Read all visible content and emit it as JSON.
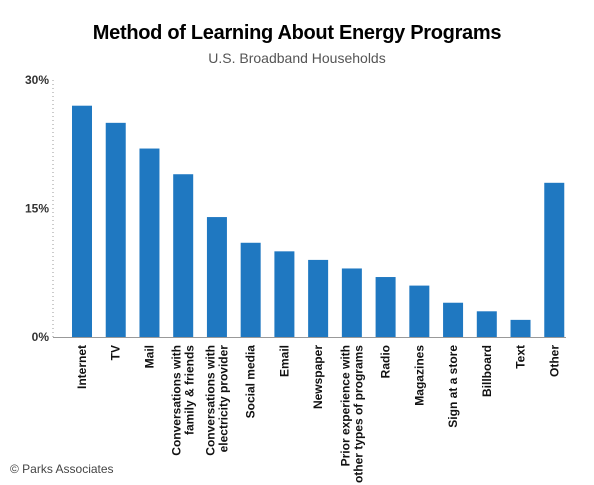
{
  "chart_data": {
    "type": "bar",
    "title": "Method of Learning About Energy Programs",
    "subtitle": "U.S. Broadband Households",
    "xlabel": "",
    "ylabel": "",
    "ylim": [
      0,
      30
    ],
    "yticks": [
      "0%",
      "15%",
      "30%"
    ],
    "ytick_values": [
      0,
      15,
      30
    ],
    "grid": false,
    "categories": [
      [
        "Internet"
      ],
      [
        "TV"
      ],
      [
        "Mail"
      ],
      [
        "Conversations with",
        "family & friends"
      ],
      [
        "Conversations with",
        "electricity provider"
      ],
      [
        "Social media"
      ],
      [
        "Email"
      ],
      [
        "Newspaper"
      ],
      [
        "Prior experience with",
        "other types of programs"
      ],
      [
        "Radio"
      ],
      [
        "Magazines"
      ],
      [
        "Sign at a store"
      ],
      [
        "Billboard"
      ],
      [
        "Text"
      ],
      [
        "Other"
      ]
    ],
    "values": [
      27,
      25,
      22,
      19,
      14,
      11,
      10,
      9,
      8,
      7,
      6,
      4,
      3,
      2,
      18
    ],
    "bar_color": "#1f78c1"
  },
  "footer": "© Parks Associates"
}
